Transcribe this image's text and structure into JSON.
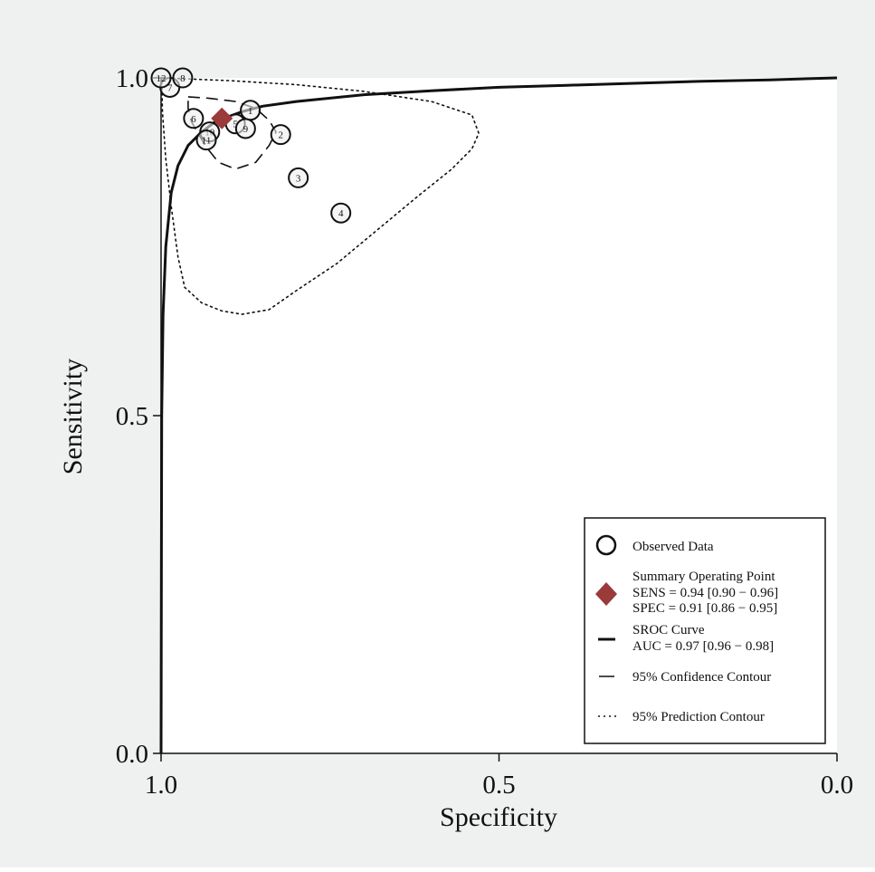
{
  "chart_data": {
    "type": "scatter",
    "xlabel": "Specificity",
    "ylabel": "Sensitivity",
    "xlim": [
      1.0,
      0.0
    ],
    "ylim": [
      0.0,
      1.0
    ],
    "x_reversed": true,
    "x_ticks": [
      "1.0",
      "0.5",
      "0.0"
    ],
    "y_ticks": [
      "0.0",
      "0.5",
      "1.0"
    ],
    "x_tick_values": [
      1.0,
      0.5,
      0.0
    ],
    "y_tick_values": [
      0.0,
      0.5,
      1.0
    ],
    "grid": false,
    "legend_position": "bottom-right",
    "colors": {
      "summary_point": "#9b3a3a",
      "background": "#eef1f0",
      "plot": "#ffffff",
      "ink": "#111111"
    },
    "studies": [
      {
        "id": "1",
        "spec": 0.868,
        "sens": 0.952
      },
      {
        "id": "2",
        "spec": 0.823,
        "sens": 0.916
      },
      {
        "id": "3",
        "spec": 0.797,
        "sens": 0.852
      },
      {
        "id": "4",
        "spec": 0.734,
        "sens": 0.8
      },
      {
        "id": "5",
        "spec": 0.89,
        "sens": 0.932
      },
      {
        "id": "6",
        "spec": 0.952,
        "sens": 0.94
      },
      {
        "id": "7",
        "spec": 0.987,
        "sens": 0.986
      },
      {
        "id": "8",
        "spec": 0.968,
        "sens": 1.0
      },
      {
        "id": "9",
        "spec": 0.875,
        "sens": 0.925
      },
      {
        "id": "10",
        "spec": 0.928,
        "sens": 0.92
      },
      {
        "id": "11",
        "spec": 0.933,
        "sens": 0.908
      },
      {
        "id": "12",
        "spec": 1.0,
        "sens": 1.0
      }
    ],
    "summary_point": {
      "sens": 0.94,
      "spec": 0.91,
      "sens_ci": [
        0.9,
        0.96
      ],
      "spec_ci": [
        0.86,
        0.95
      ]
    },
    "sroc_curve": [
      [
        1.0,
        0.0
      ],
      [
        0.9995,
        0.3
      ],
      [
        0.999,
        0.5
      ],
      [
        0.997,
        0.65
      ],
      [
        0.993,
        0.75
      ],
      [
        0.985,
        0.83
      ],
      [
        0.975,
        0.87
      ],
      [
        0.96,
        0.9
      ],
      [
        0.94,
        0.92
      ],
      [
        0.92,
        0.935
      ],
      [
        0.88,
        0.95
      ],
      [
        0.85,
        0.958
      ],
      [
        0.8,
        0.965
      ],
      [
        0.7,
        0.975
      ],
      [
        0.6,
        0.981
      ],
      [
        0.5,
        0.986
      ],
      [
        0.4,
        0.989
      ],
      [
        0.3,
        0.992
      ],
      [
        0.2,
        0.995
      ],
      [
        0.1,
        0.997
      ],
      [
        0.0,
        1.0
      ]
    ],
    "confidence_contour": [
      [
        0.96,
        0.972
      ],
      [
        0.93,
        0.97
      ],
      [
        0.89,
        0.965
      ],
      [
        0.86,
        0.955
      ],
      [
        0.84,
        0.937
      ],
      [
        0.83,
        0.92
      ],
      [
        0.84,
        0.9
      ],
      [
        0.86,
        0.875
      ],
      [
        0.89,
        0.865
      ],
      [
        0.915,
        0.875
      ],
      [
        0.935,
        0.9
      ],
      [
        0.955,
        0.935
      ],
      [
        0.96,
        0.955
      ]
    ],
    "prediction_contour": [
      [
        0.999,
        1.0
      ],
      [
        0.9,
        0.996
      ],
      [
        0.8,
        0.99
      ],
      [
        0.7,
        0.98
      ],
      [
        0.6,
        0.965
      ],
      [
        0.54,
        0.945
      ],
      [
        0.53,
        0.918
      ],
      [
        0.54,
        0.895
      ],
      [
        0.57,
        0.865
      ],
      [
        0.62,
        0.825
      ],
      [
        0.68,
        0.775
      ],
      [
        0.74,
        0.725
      ],
      [
        0.8,
        0.685
      ],
      [
        0.84,
        0.657
      ],
      [
        0.88,
        0.65
      ],
      [
        0.91,
        0.655
      ],
      [
        0.94,
        0.667
      ],
      [
        0.965,
        0.69
      ],
      [
        0.975,
        0.735
      ],
      [
        0.985,
        0.81
      ],
      [
        0.993,
        0.88
      ],
      [
        0.998,
        0.95
      ],
      [
        0.999,
        1.0
      ]
    ],
    "legend": {
      "observed": "Observed Data",
      "summary_title": "Summary Operating Point",
      "summary_sens": "SENS = 0.94 [0.90 − 0.96]",
      "summary_spec": "SPEC = 0.91 [0.86 − 0.95]",
      "sroc_title": "SROC Curve",
      "sroc_auc": "AUC = 0.97 [0.96 − 0.98]",
      "confidence": "95% Confidence Contour",
      "prediction": "95% Prediction Contour"
    }
  }
}
